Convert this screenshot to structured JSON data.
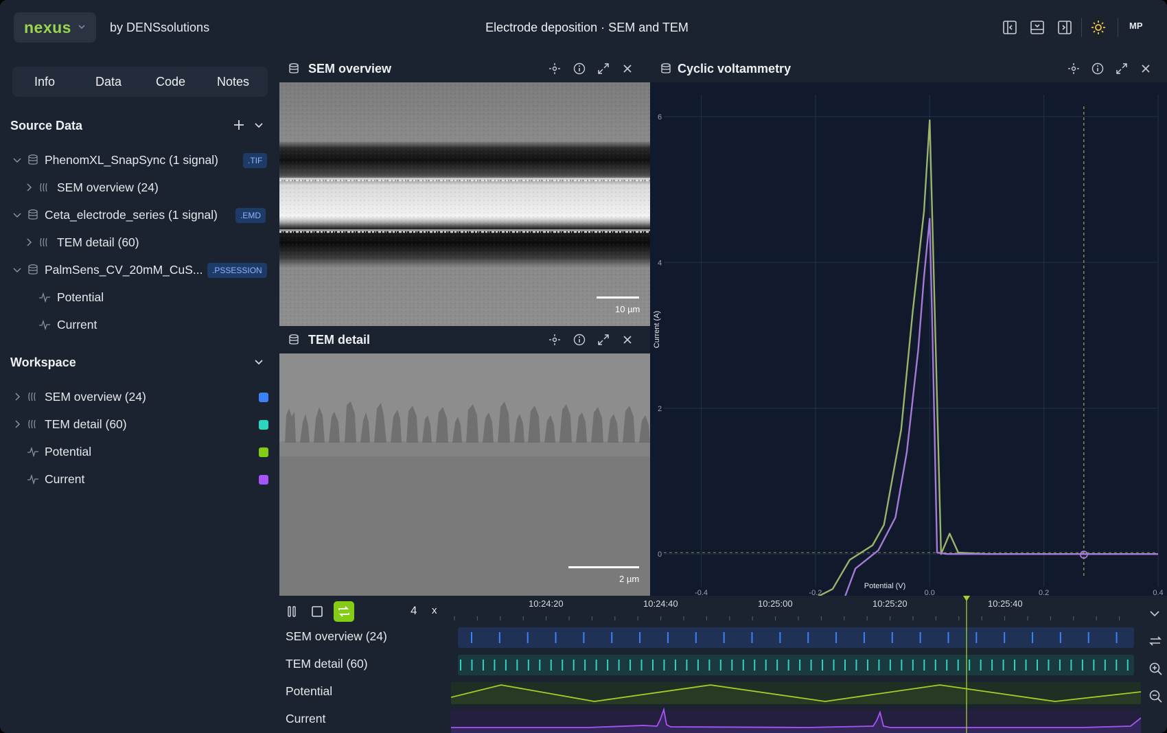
{
  "app": {
    "name": "nexus",
    "byline": "by DENSsolutions",
    "title": "Electrode deposition · SEM and TEM",
    "avatar": "MP"
  },
  "colors": {
    "accent_green": "#9ad54a",
    "sem": "#3b82f6",
    "tem": "#2dd4bf",
    "potential": "#84cc16",
    "current": "#a855f7"
  },
  "sidebar": {
    "tabs": [
      "Info",
      "Data",
      "Code",
      "Notes"
    ],
    "source_header": "Source Data",
    "sources": [
      {
        "name": "PhenomXL_SnapSync (1 signal)",
        "badge": ".TIF",
        "child": "SEM overview (24)"
      },
      {
        "name": "Ceta_electrode_series (1 signal)",
        "badge": ".EMD",
        "child": "TEM detail (60)"
      },
      {
        "name": "PalmSens_CV_20mM_CuS...",
        "badge": ".PSSESSION",
        "children": [
          "Potential",
          "Current"
        ]
      }
    ],
    "workspace_header": "Workspace",
    "workspace": [
      {
        "label": "SEM overview (24)",
        "color": "#3b82f6",
        "icon": "image-stack-icon"
      },
      {
        "label": "TEM detail (60)",
        "color": "#2dd4bf",
        "icon": "image-stack-icon"
      },
      {
        "label": "Potential",
        "color": "#84cc16",
        "icon": "signal-icon"
      },
      {
        "label": "Current",
        "color": "#a855f7",
        "icon": "signal-icon"
      }
    ]
  },
  "panels": {
    "sem": {
      "title": "SEM overview",
      "scale": "10 µm"
    },
    "tem": {
      "title": "TEM detail",
      "scale": "2 µm"
    },
    "cv": {
      "title": "Cyclic voltammetry"
    }
  },
  "chart_data": {
    "type": "line",
    "title": "",
    "xlabel": "Potential (V)",
    "ylabel": "Current (A)",
    "xlim": [
      -0.48,
      0.4
    ],
    "ylim": [
      -0.45,
      6.3
    ],
    "xticks": [
      "-0.4",
      "-0.2",
      "0.0",
      "0.2",
      "0.4"
    ],
    "yticks": [
      "0",
      "2",
      "4",
      "6"
    ],
    "cursor_x": 0.27,
    "series": [
      {
        "color": "#9bb36b",
        "x": [
          -0.48,
          -0.3,
          -0.2,
          -0.17,
          -0.14,
          -0.1,
          -0.08,
          -0.05,
          -0.03,
          -0.01,
          0.0,
          0.01,
          0.02,
          0.035,
          0.05,
          0.1,
          0.2,
          0.3,
          0.4
        ],
        "y": [
          -0.65,
          -0.63,
          -0.6,
          -0.48,
          -0.08,
          0.12,
          0.4,
          1.7,
          3.3,
          4.7,
          5.95,
          3.0,
          0.0,
          0.28,
          0.02,
          0.0,
          0.0,
          0.0,
          0.0
        ]
      },
      {
        "color": "#a579d8",
        "x": [
          -0.48,
          -0.3,
          -0.2,
          -0.15,
          -0.13,
          -0.09,
          -0.06,
          -0.04,
          -0.02,
          -0.01,
          0.0,
          0.005,
          0.013,
          0.03,
          0.1,
          0.2,
          0.3,
          0.4
        ],
        "y": [
          -0.75,
          -0.73,
          -0.7,
          -0.62,
          -0.2,
          0.05,
          0.5,
          1.4,
          2.8,
          3.8,
          4.6,
          3.0,
          0.02,
          0.0,
          0.0,
          0.0,
          0.0,
          0.0
        ]
      }
    ]
  },
  "timeline": {
    "speed": "4",
    "speed_unit": "x",
    "times": [
      "10:24:20",
      "10:24:40",
      "10:25:00",
      "10:25:20",
      "10:25:40"
    ],
    "tracks": [
      "SEM overview (24)",
      "TEM detail (60)",
      "Potential",
      "Current"
    ],
    "sem_frames": 24,
    "tem_frames": 60,
    "playhead_fraction": 0.747
  }
}
